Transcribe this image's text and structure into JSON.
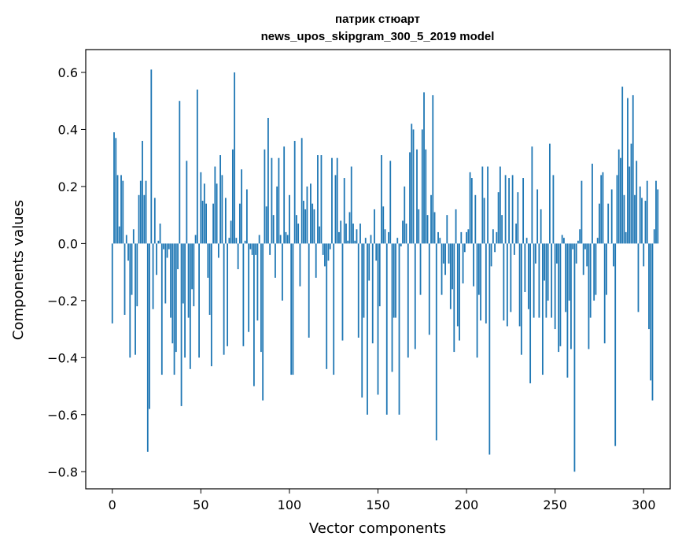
{
  "chart_data": {
    "type": "bar",
    "title_line1": "патрик стюарт",
    "title_line2": "news_upos_skipgram_300_5_2019 model",
    "xlabel": "Vector components",
    "ylabel": "Components values",
    "xlim": [
      -15,
      315
    ],
    "ylim": [
      -0.86,
      0.68
    ],
    "xticks": [
      0,
      50,
      100,
      150,
      200,
      250,
      300
    ],
    "xtick_labels": [
      "0",
      "50",
      "100",
      "150",
      "200",
      "250",
      "300"
    ],
    "yticks": [
      -0.8,
      -0.6,
      -0.4,
      -0.2,
      0.0,
      0.2,
      0.4,
      0.6
    ],
    "ytick_labels": [
      "−0.8",
      "−0.6",
      "−0.4",
      "−0.2",
      "0.0",
      "0.2",
      "0.4",
      "0.6"
    ],
    "grid": false,
    "bar_color": "#1f77b4",
    "values": [
      -0.28,
      0.39,
      0.37,
      0.24,
      0.06,
      0.24,
      0.22,
      -0.25,
      0.03,
      -0.06,
      -0.4,
      -0.18,
      0.05,
      -0.39,
      -0.22,
      0.17,
      0.22,
      0.36,
      0.17,
      0.22,
      -0.73,
      -0.58,
      0.61,
      -0.23,
      0.16,
      -0.11,
      0.01,
      0.07,
      -0.46,
      -0.02,
      -0.21,
      -0.05,
      -0.02,
      -0.26,
      -0.35,
      -0.46,
      -0.38,
      -0.09,
      0.5,
      -0.57,
      -0.21,
      -0.4,
      0.29,
      -0.26,
      -0.44,
      -0.16,
      -0.22,
      0.03,
      0.54,
      -0.4,
      0.25,
      0.15,
      0.21,
      0.14,
      -0.12,
      -0.25,
      -0.43,
      0.14,
      0.27,
      0.21,
      -0.05,
      0.31,
      0.24,
      -0.39,
      0.16,
      -0.36,
      0.02,
      0.08,
      0.33,
      0.6,
      0.02,
      -0.09,
      0.14,
      0.26,
      -0.36,
      0.01,
      0.19,
      -0.31,
      -0.02,
      -0.04,
      -0.5,
      -0.04,
      -0.27,
      0.03,
      -0.38,
      -0.55,
      0.33,
      0.13,
      0.44,
      -0.04,
      0.3,
      0.1,
      -0.12,
      0.2,
      0.3,
      0.03,
      -0.2,
      0.34,
      0.04,
      0.03,
      0.17,
      -0.46,
      -0.46,
      0.36,
      0.1,
      0.07,
      -0.15,
      0.37,
      0.15,
      0.12,
      0.2,
      -0.33,
      0.21,
      0.14,
      0.12,
      -0.12,
      0.31,
      0.06,
      0.31,
      -0.04,
      -0.08,
      -0.44,
      -0.06,
      -0.02,
      0.3,
      -0.46,
      0.24,
      0.3,
      0.04,
      0.08,
      -0.34,
      0.23,
      0.07,
      0.01,
      0.11,
      0.27,
      0.07,
      0.01,
      0.05,
      -0.33,
      0.07,
      -0.54,
      -0.26,
      0.02,
      -0.6,
      -0.13,
      0.03,
      -0.35,
      0.12,
      -0.06,
      -0.53,
      -0.22,
      0.31,
      0.13,
      0.05,
      -0.6,
      0.04,
      0.29,
      -0.45,
      -0.26,
      -0.26,
      0.02,
      -0.6,
      -0.01,
      0.08,
      0.2,
      0.07,
      -0.4,
      0.32,
      0.42,
      0.4,
      -0.37,
      0.33,
      0.12,
      -0.18,
      0.4,
      0.53,
      0.33,
      0.1,
      -0.32,
      0.17,
      0.52,
      0.11,
      -0.69,
      0.04,
      0.02,
      -0.18,
      -0.07,
      -0.11,
      0.1,
      -0.07,
      -0.23,
      -0.16,
      -0.38,
      0.12,
      -0.29,
      -0.34,
      0.04,
      -0.14,
      -0.03,
      0.04,
      0.05,
      0.25,
      0.23,
      -0.15,
      0.17,
      -0.4,
      -0.18,
      -0.27,
      0.27,
      0.16,
      -0.28,
      0.27,
      -0.74,
      -0.08,
      0.05,
      -0.03,
      0.04,
      0.18,
      0.27,
      0.1,
      -0.27,
      0.24,
      -0.29,
      0.23,
      -0.24,
      0.24,
      -0.04,
      0.07,
      0.18,
      -0.29,
      -0.39,
      0.23,
      -0.17,
      0.02,
      -0.23,
      -0.49,
      0.34,
      -0.26,
      -0.07,
      0.19,
      -0.26,
      0.12,
      -0.46,
      -0.13,
      -0.26,
      -0.2,
      0.35,
      -0.26,
      0.24,
      -0.3,
      -0.07,
      -0.38,
      -0.36,
      0.03,
      0.02,
      -0.24,
      -0.47,
      -0.2,
      -0.37,
      -0.02,
      -0.8,
      -0.07,
      0.01,
      0.05,
      0.22,
      -0.11,
      -0.02,
      -0.08,
      -0.37,
      -0.26,
      0.28,
      -0.2,
      -0.18,
      0.02,
      0.14,
      0.24,
      0.25,
      -0.35,
      -0.18,
      0.14,
      0.0,
      0.19,
      -0.08,
      -0.71,
      0.24,
      0.33,
      0.3,
      0.55,
      0.17,
      0.04,
      0.51,
      0.27,
      0.35,
      0.52,
      0.17,
      0.29,
      -0.24,
      0.2,
      0.16,
      -0.08,
      0.15,
      0.22,
      -0.3,
      -0.48,
      -0.55,
      0.05,
      0.22,
      0.19
    ]
  }
}
